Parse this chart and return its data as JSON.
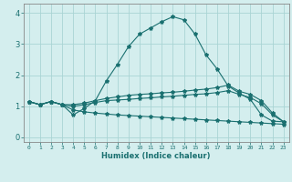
{
  "xlabel": "Humidex (Indice chaleur)",
  "bg_color": "#d4eeee",
  "grid_color": "#aad4d4",
  "line_color": "#1a7070",
  "spine_color": "#888888",
  "xlim": [
    -0.5,
    23.5
  ],
  "ylim": [
    -0.15,
    4.3
  ],
  "xticks": [
    0,
    1,
    2,
    3,
    4,
    5,
    6,
    7,
    8,
    9,
    10,
    11,
    12,
    13,
    14,
    15,
    16,
    17,
    18,
    19,
    20,
    21,
    22,
    23
  ],
  "yticks": [
    0,
    1,
    2,
    3,
    4
  ],
  "series": [
    [
      1.15,
      1.05,
      1.15,
      1.05,
      0.72,
      0.93,
      1.18,
      1.82,
      2.35,
      2.92,
      3.32,
      3.52,
      3.72,
      3.88,
      3.78,
      3.32,
      2.65,
      2.2,
      1.65,
      1.42,
      1.22,
      0.72,
      0.52,
      0.5
    ],
    [
      1.15,
      1.05,
      1.15,
      1.05,
      1.05,
      1.1,
      1.18,
      1.25,
      1.3,
      1.35,
      1.38,
      1.4,
      1.43,
      1.45,
      1.48,
      1.52,
      1.55,
      1.6,
      1.68,
      1.48,
      1.38,
      1.18,
      0.78,
      0.5
    ],
    [
      1.15,
      1.05,
      1.15,
      1.05,
      1.0,
      1.05,
      1.12,
      1.18,
      1.2,
      1.22,
      1.25,
      1.27,
      1.3,
      1.32,
      1.35,
      1.38,
      1.4,
      1.44,
      1.5,
      1.38,
      1.28,
      1.08,
      0.72,
      0.5
    ],
    [
      1.15,
      1.05,
      1.15,
      1.05,
      0.88,
      0.82,
      0.78,
      0.75,
      0.72,
      0.7,
      0.68,
      0.66,
      0.64,
      0.62,
      0.6,
      0.58,
      0.56,
      0.54,
      0.52,
      0.5,
      0.48,
      0.46,
      0.44,
      0.42
    ]
  ]
}
